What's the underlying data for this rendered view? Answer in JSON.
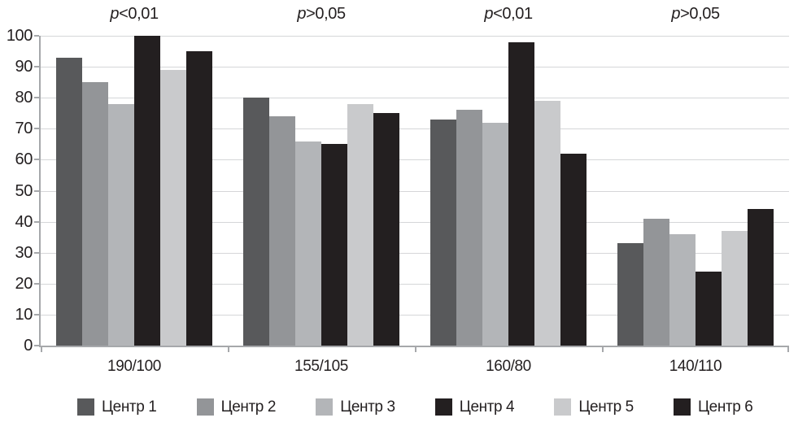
{
  "chart_data": {
    "type": "bar",
    "title": "",
    "categories": [
      "190/100",
      "155/105",
      "160/80",
      "140/110"
    ],
    "group_annotations": [
      "p<0,01",
      "p>0,05",
      "p<0,01",
      "p>0,05"
    ],
    "series": [
      {
        "name": "Центр 1",
        "color": "#58595b",
        "values": [
          93,
          80,
          73,
          33
        ]
      },
      {
        "name": "Центр 2",
        "color": "#939598",
        "values": [
          85,
          74,
          76,
          41
        ]
      },
      {
        "name": "Центр 3",
        "color": "#b3b5b8",
        "values": [
          78,
          66,
          72,
          36
        ]
      },
      {
        "name": "Центр 4",
        "color": "#231f20",
        "values": [
          100,
          65,
          98,
          24
        ]
      },
      {
        "name": "Центр 5",
        "color": "#c9cacc",
        "values": [
          89,
          78,
          79,
          37
        ]
      },
      {
        "name": "Центр 6",
        "color": "#231f20",
        "values": [
          95,
          75,
          62,
          44
        ]
      }
    ],
    "y_axis": {
      "min": 0,
      "max": 100,
      "step": 10,
      "tick_labels": [
        "0",
        "10",
        "20",
        "30",
        "40",
        "50",
        "60",
        "70",
        "80",
        "90",
        "100"
      ]
    },
    "xlabel": "",
    "ylabel": "",
    "grid": true,
    "legend_position": "bottom"
  },
  "colors": {
    "axis": "#a6a8ab",
    "gridline": "#d5d6d8",
    "text": "#231f20",
    "background": "#ffffff"
  }
}
